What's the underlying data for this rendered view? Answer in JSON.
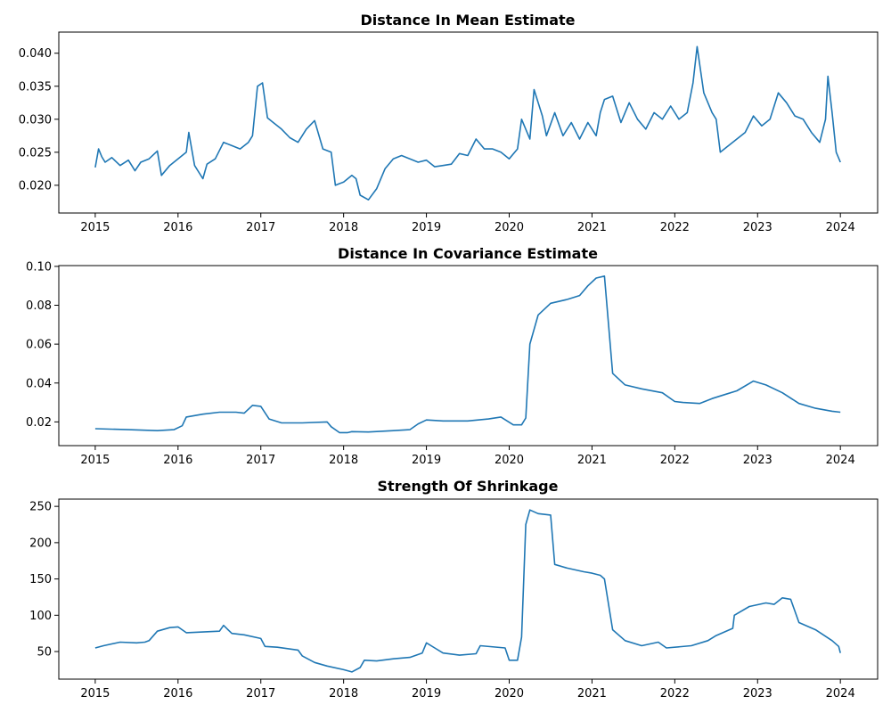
{
  "colors": {
    "series": "#1f77b4",
    "axes": "#000000",
    "background": "#ffffff"
  },
  "chart_data": [
    {
      "type": "line",
      "title": "Distance In Mean Estimate",
      "xlabel": "",
      "ylabel": "",
      "xlim": [
        2014.56,
        2024.45
      ],
      "ylim": [
        0.0158,
        0.0432
      ],
      "x_ticks": [
        2015,
        2016,
        2017,
        2018,
        2019,
        2020,
        2021,
        2022,
        2023,
        2024
      ],
      "y_ticks": [
        0.02,
        0.025,
        0.03,
        0.035,
        0.04
      ],
      "y_tick_labels": [
        "0.020",
        "0.025",
        "0.030",
        "0.035",
        "0.040"
      ],
      "grid": false,
      "series": [
        {
          "x": [
            2015.0,
            2015.04,
            2015.08,
            2015.12,
            2015.2,
            2015.3,
            2015.4,
            2015.48,
            2015.55,
            2015.65,
            2015.75,
            2015.8,
            2015.9,
            2016.0,
            2016.1,
            2016.13,
            2016.2,
            2016.3,
            2016.35,
            2016.45,
            2016.55,
            2016.65,
            2016.75,
            2016.85,
            2016.9,
            2016.96,
            2017.02,
            2017.08,
            2017.15,
            2017.25,
            2017.35,
            2017.45,
            2017.55,
            2017.65,
            2017.75,
            2017.85,
            2017.9,
            2018.0,
            2018.1,
            2018.15,
            2018.2,
            2018.3,
            2018.4,
            2018.5,
            2018.6,
            2018.7,
            2018.8,
            2018.9,
            2019.0,
            2019.1,
            2019.2,
            2019.3,
            2019.4,
            2019.5,
            2019.6,
            2019.7,
            2019.8,
            2019.9,
            2020.0,
            2020.1,
            2020.15,
            2020.25,
            2020.3,
            2020.4,
            2020.45,
            2020.55,
            2020.65,
            2020.75,
            2020.85,
            2020.95,
            2021.05,
            2021.1,
            2021.15,
            2021.25,
            2021.35,
            2021.45,
            2021.55,
            2021.65,
            2021.75,
            2021.85,
            2021.95,
            2022.05,
            2022.15,
            2022.22,
            2022.27,
            2022.35,
            2022.45,
            2022.5,
            2022.55,
            2022.65,
            2022.75,
            2022.85,
            2022.95,
            2023.05,
            2023.15,
            2023.25,
            2023.35,
            2023.45,
            2023.55,
            2023.65,
            2023.75,
            2023.82,
            2023.85,
            2023.9,
            2023.95,
            2024.0
          ],
          "values": [
            0.0227,
            0.0255,
            0.0243,
            0.0235,
            0.0242,
            0.023,
            0.0238,
            0.0222,
            0.0235,
            0.024,
            0.0252,
            0.0215,
            0.023,
            0.024,
            0.025,
            0.028,
            0.023,
            0.021,
            0.0232,
            0.024,
            0.0265,
            0.026,
            0.0255,
            0.0265,
            0.0275,
            0.035,
            0.0355,
            0.0302,
            0.0295,
            0.0285,
            0.0272,
            0.0265,
            0.0285,
            0.0298,
            0.0255,
            0.025,
            0.02,
            0.0205,
            0.0215,
            0.021,
            0.0185,
            0.0178,
            0.0195,
            0.0225,
            0.024,
            0.0245,
            0.024,
            0.0235,
            0.0238,
            0.0228,
            0.023,
            0.0232,
            0.0248,
            0.0245,
            0.027,
            0.0255,
            0.0255,
            0.025,
            0.024,
            0.0255,
            0.03,
            0.027,
            0.0345,
            0.0305,
            0.0275,
            0.031,
            0.0275,
            0.0295,
            0.027,
            0.0295,
            0.0275,
            0.031,
            0.033,
            0.0335,
            0.0295,
            0.0325,
            0.03,
            0.0285,
            0.031,
            0.03,
            0.032,
            0.03,
            0.031,
            0.0355,
            0.041,
            0.034,
            0.031,
            0.03,
            0.025,
            0.026,
            0.027,
            0.028,
            0.0305,
            0.029,
            0.03,
            0.034,
            0.0325,
            0.0305,
            0.03,
            0.028,
            0.0265,
            0.03,
            0.0365,
            0.031,
            0.025,
            0.0235
          ]
        }
      ]
    },
    {
      "type": "line",
      "title": "Distance In Covariance Estimate",
      "xlabel": "",
      "ylabel": "",
      "xlim": [
        2014.56,
        2024.45
      ],
      "ylim": [
        0.0078,
        0.1004
      ],
      "x_ticks": [
        2015,
        2016,
        2017,
        2018,
        2019,
        2020,
        2021,
        2022,
        2023,
        2024
      ],
      "y_ticks": [
        0.02,
        0.04,
        0.06,
        0.08,
        0.1
      ],
      "y_tick_labels": [
        "0.02",
        "0.04",
        "0.06",
        "0.08",
        "0.10"
      ],
      "grid": false,
      "series": [
        {
          "x": [
            2015.0,
            2015.4,
            2015.75,
            2015.95,
            2016.05,
            2016.1,
            2016.3,
            2016.5,
            2016.7,
            2016.8,
            2016.9,
            2017.0,
            2017.1,
            2017.25,
            2017.5,
            2017.8,
            2017.85,
            2017.95,
            2018.05,
            2018.1,
            2018.3,
            2018.6,
            2018.8,
            2018.9,
            2019.0,
            2019.2,
            2019.5,
            2019.75,
            2019.9,
            2020.05,
            2020.15,
            2020.2,
            2020.25,
            2020.35,
            2020.5,
            2020.7,
            2020.85,
            2020.95,
            2021.05,
            2021.15,
            2021.2,
            2021.25,
            2021.4,
            2021.6,
            2021.85,
            2022.0,
            2022.1,
            2022.3,
            2022.45,
            2022.6,
            2022.75,
            2022.95,
            2023.1,
            2023.3,
            2023.5,
            2023.7,
            2023.9,
            2024.0
          ],
          "values": [
            0.0165,
            0.016,
            0.0155,
            0.016,
            0.018,
            0.0225,
            0.024,
            0.025,
            0.025,
            0.0245,
            0.0285,
            0.028,
            0.0215,
            0.0195,
            0.0195,
            0.02,
            0.0175,
            0.0145,
            0.0145,
            0.015,
            0.0148,
            0.0155,
            0.016,
            0.019,
            0.021,
            0.0205,
            0.0205,
            0.0215,
            0.0225,
            0.0185,
            0.0185,
            0.022,
            0.06,
            0.075,
            0.081,
            0.083,
            0.085,
            0.09,
            0.094,
            0.095,
            0.07,
            0.045,
            0.039,
            0.037,
            0.035,
            0.0305,
            0.03,
            0.0295,
            0.032,
            0.034,
            0.036,
            0.041,
            0.039,
            0.035,
            0.0295,
            0.027,
            0.0255,
            0.025
          ]
        }
      ]
    },
    {
      "type": "line",
      "title": "Strength Of Shrinkage",
      "xlabel": "",
      "ylabel": "",
      "xlim": [
        2014.56,
        2024.45
      ],
      "ylim": [
        12,
        260
      ],
      "x_ticks": [
        2015,
        2016,
        2017,
        2018,
        2019,
        2020,
        2021,
        2022,
        2023,
        2024
      ],
      "y_ticks": [
        50,
        100,
        150,
        200,
        250
      ],
      "y_tick_labels": [
        "50",
        "100",
        "150",
        "200",
        "250"
      ],
      "grid": false,
      "series": [
        {
          "x": [
            2015.0,
            2015.1,
            2015.3,
            2015.5,
            2015.6,
            2015.65,
            2015.75,
            2015.9,
            2016.0,
            2016.1,
            2016.3,
            2016.5,
            2016.55,
            2016.65,
            2016.8,
            2017.0,
            2017.05,
            2017.2,
            2017.45,
            2017.5,
            2017.65,
            2017.8,
            2018.0,
            2018.1,
            2018.2,
            2018.25,
            2018.4,
            2018.6,
            2018.8,
            2018.95,
            2019.0,
            2019.1,
            2019.2,
            2019.4,
            2019.6,
            2019.65,
            2019.95,
            2020.0,
            2020.1,
            2020.15,
            2020.2,
            2020.25,
            2020.35,
            2020.5,
            2020.55,
            2020.7,
            2020.9,
            2021.0,
            2021.1,
            2021.15,
            2021.25,
            2021.4,
            2021.6,
            2021.8,
            2021.9,
            2022.2,
            2022.4,
            2022.5,
            2022.7,
            2022.72,
            2022.9,
            2023.1,
            2023.2,
            2023.3,
            2023.4,
            2023.5,
            2023.7,
            2023.9,
            2023.98,
            2024.0
          ],
          "values": [
            55,
            58,
            63,
            62,
            63,
            65,
            78,
            83,
            84,
            76,
            77,
            78,
            86,
            75,
            73,
            68,
            57,
            56,
            52,
            44,
            35,
            30,
            25,
            22,
            28,
            38,
            37,
            40,
            42,
            48,
            62,
            55,
            48,
            45,
            47,
            58,
            55,
            38,
            38,
            70,
            225,
            245,
            240,
            238,
            170,
            165,
            160,
            158,
            155,
            150,
            80,
            65,
            58,
            63,
            55,
            58,
            65,
            72,
            82,
            100,
            112,
            117,
            115,
            124,
            122,
            90,
            80,
            65,
            57,
            48
          ]
        }
      ]
    }
  ]
}
